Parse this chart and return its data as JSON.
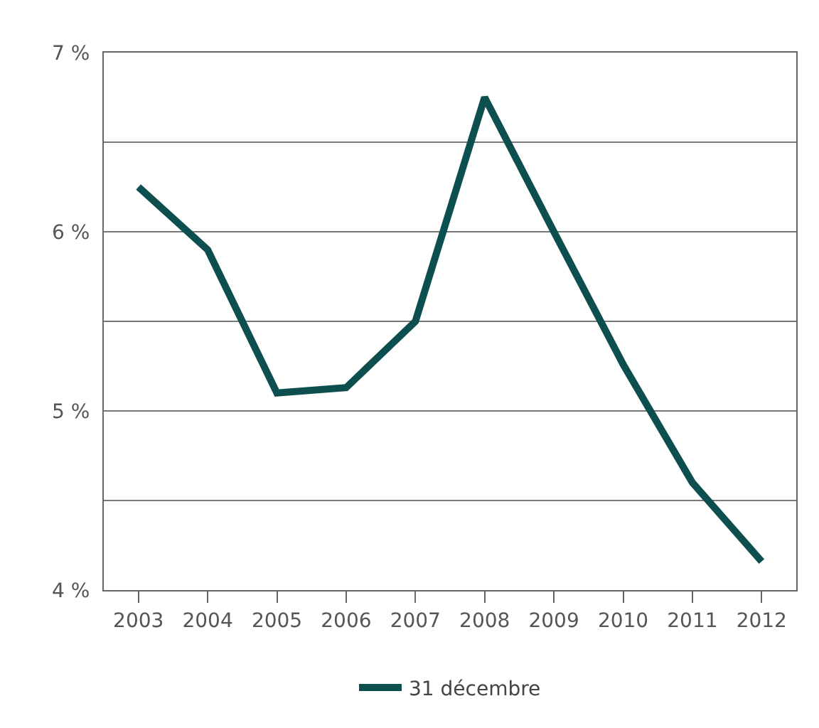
{
  "chart_data": {
    "type": "line",
    "categories": [
      "2003",
      "2004",
      "2005",
      "2006",
      "2007",
      "2008",
      "2009",
      "2010",
      "2011",
      "2012"
    ],
    "series": [
      {
        "name": "31 décembre",
        "color": "#0d4f4f",
        "values": [
          6.25,
          5.9,
          5.1,
          5.13,
          5.5,
          6.75,
          6.0,
          5.26,
          4.6,
          4.16
        ]
      }
    ],
    "ylim": [
      4,
      7
    ],
    "yticks": [
      {
        "value": 4,
        "label": "4 %"
      },
      {
        "value": 4.5,
        "label": null
      },
      {
        "value": 5,
        "label": "5 %"
      },
      {
        "value": 5.5,
        "label": null
      },
      {
        "value": 6,
        "label": "6 %"
      },
      {
        "value": 6.5,
        "label": null
      },
      {
        "value": 7,
        "label": "7 %"
      }
    ],
    "grid": "y",
    "legend": "bottom",
    "marker": "none",
    "line_style": "solid"
  }
}
